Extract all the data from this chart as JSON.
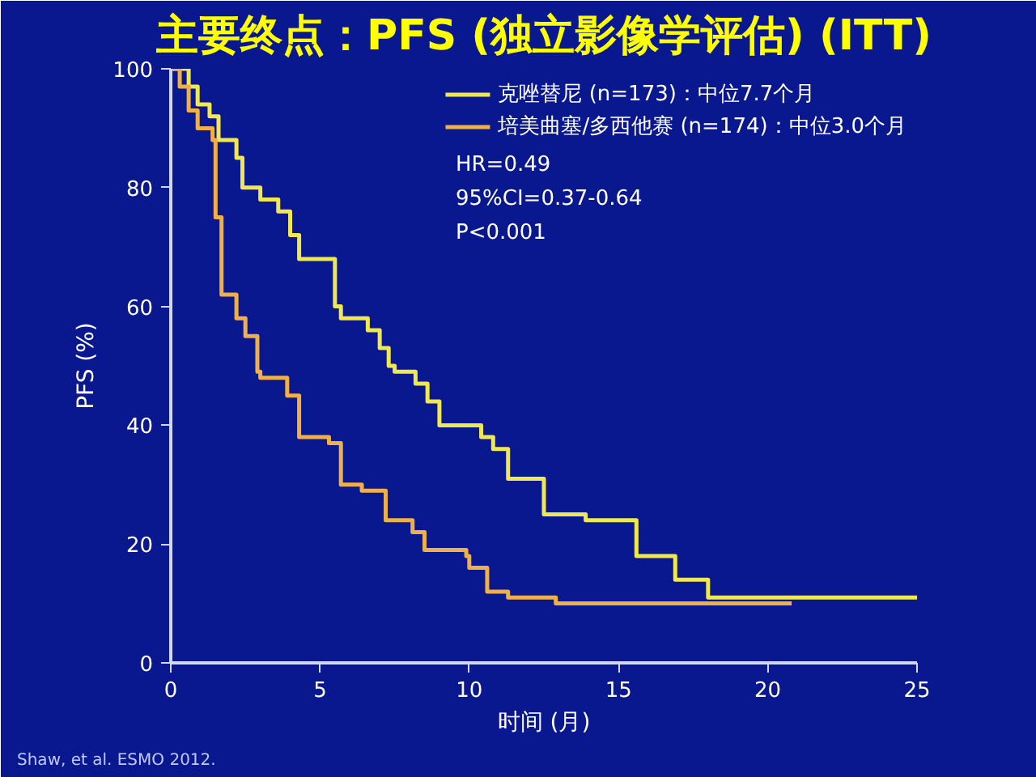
{
  "chart_data": {
    "type": "step",
    "title": "主要终点：PFS (独立影像学评估) (ITT)",
    "xlabel": "时间 (月)",
    "ylabel": "PFS (%)",
    "xlim": [
      0,
      25
    ],
    "ylim": [
      0,
      100
    ],
    "xticks": [
      0,
      5,
      10,
      15,
      20,
      25
    ],
    "yticks": [
      0,
      20,
      40,
      60,
      80,
      100
    ],
    "grid": false,
    "legend": "top right",
    "line_style": "solid",
    "marker": "none",
    "series": [
      {
        "name": "克唑替尼 (n=173)：中位7.7个月",
        "color": "#f0e850",
        "x": [
          0,
          0.6,
          0.9,
          1.3,
          1.6,
          2.2,
          2.4,
          3.0,
          3.6,
          4.0,
          4.3,
          5.5,
          5.7,
          6.6,
          7.0,
          7.3,
          7.5,
          8.2,
          8.6,
          9.0,
          9.5,
          10.4,
          10.8,
          11.3,
          12.5,
          13.9,
          15.6,
          16.9,
          18.0,
          25.0
        ],
        "values": [
          100,
          97,
          94,
          92,
          88,
          85,
          80,
          78,
          76,
          72,
          68,
          60,
          58,
          56,
          53,
          50,
          49,
          47,
          44,
          40,
          40,
          38,
          36,
          31,
          25,
          24,
          18,
          14,
          11,
          11
        ]
      },
      {
        "name": "培美曲塞/多西他赛 (n=174)：中位3.0个月",
        "color": "#f0b048",
        "x": [
          0,
          0.3,
          0.6,
          0.9,
          1.4,
          1.5,
          1.7,
          2.2,
          2.5,
          2.9,
          3.0,
          3.9,
          4.3,
          5.3,
          5.7,
          6.4,
          7.2,
          8.1,
          8.5,
          9.9,
          10.0,
          10.6,
          11.3,
          12.9,
          20.8
        ],
        "values": [
          100,
          97,
          93,
          90,
          88,
          75,
          62,
          58,
          55,
          49,
          48,
          45,
          38,
          37,
          30,
          29,
          24,
          22,
          19,
          18,
          16,
          12,
          11,
          10,
          10
        ]
      }
    ],
    "annotations": [
      "HR=0.49",
      "95%CI=0.37-0.64",
      "P<0.001",
      "Shaw, et al. ESMO 2012."
    ]
  }
}
